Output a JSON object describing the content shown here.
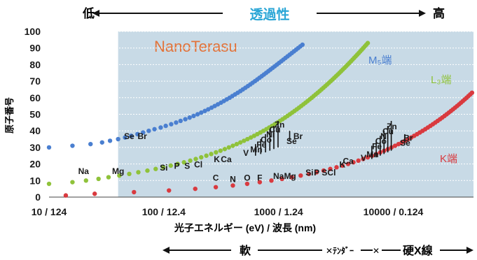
{
  "header": {
    "low": "低",
    "center": "透過性",
    "high": "高"
  },
  "brand": "NanoTerasu",
  "edge_labels": {
    "M5": "M₅端",
    "L3": "L₃端",
    "K": "K端"
  },
  "xlabel": "光子エネルギー (eV) / 波長 (nm)",
  "ylabel": "原子番号",
  "bottom_bands": {
    "soft": "軟",
    "tender": "ﾃﾝﾀﾞｰ",
    "hard": "硬X線"
  },
  "colors": {
    "M5": "#4a7fd0",
    "L3": "#8fc23a",
    "K": "#d93a3f",
    "band": "#c8dae6",
    "header": "#2aa6d6",
    "brand": "#e2733a",
    "text": "#1a1a1a"
  },
  "chart_data": {
    "type": "scatter",
    "xscale": "log",
    "xlim": [
      10,
      50000
    ],
    "ylim": [
      0,
      100
    ],
    "yticks": [
      0,
      10,
      20,
      30,
      40,
      50,
      60,
      70,
      80,
      90,
      100
    ],
    "xticks": [
      {
        "x": 10,
        "label": "10 / 124"
      },
      {
        "x": 100,
        "label": "100 / 12.4"
      },
      {
        "x": 1000,
        "label": "1000 / 1.24"
      },
      {
        "x": 10000,
        "label": "10000 / 0.124"
      }
    ],
    "shaded_region_x_start": 40,
    "series": [
      {
        "name": "M₅端",
        "points": [
          [
            10,
            30
          ],
          [
            16,
            31
          ],
          [
            23,
            32
          ],
          [
            29,
            33
          ],
          [
            34,
            34
          ],
          [
            40,
            35
          ],
          [
            46,
            36
          ],
          [
            52,
            37
          ],
          [
            59,
            38
          ],
          [
            66,
            39
          ],
          [
            74,
            40
          ],
          [
            83,
            41
          ],
          [
            94,
            42
          ],
          [
            104,
            43
          ],
          [
            116,
            44
          ],
          [
            128,
            45
          ],
          [
            140,
            46
          ],
          [
            154,
            47
          ],
          [
            168,
            48
          ],
          [
            182,
            49
          ],
          [
            197,
            50
          ],
          [
            212,
            51
          ],
          [
            228,
            52
          ],
          [
            244,
            53
          ],
          [
            261,
            54
          ],
          [
            278,
            55
          ],
          [
            296,
            56
          ],
          [
            315,
            57
          ],
          [
            334,
            58
          ],
          [
            354,
            59
          ],
          [
            375,
            60
          ],
          [
            396,
            61
          ],
          [
            418,
            62
          ],
          [
            441,
            63
          ],
          [
            465,
            64
          ],
          [
            489,
            65
          ],
          [
            514,
            66
          ],
          [
            540,
            67
          ],
          [
            567,
            68
          ],
          [
            594,
            69
          ],
          [
            623,
            70
          ],
          [
            652,
            71
          ],
          [
            682,
            72
          ],
          [
            714,
            73
          ],
          [
            746,
            74
          ],
          [
            780,
            75
          ],
          [
            815,
            76
          ],
          [
            851,
            77
          ],
          [
            889,
            78
          ],
          [
            928,
            79
          ],
          [
            969,
            80
          ],
          [
            1011,
            81
          ],
          [
            1056,
            82
          ],
          [
            1102,
            83
          ],
          [
            1150,
            84
          ],
          [
            1200,
            85
          ],
          [
            1253,
            86
          ],
          [
            1307,
            87
          ],
          [
            1364,
            88
          ],
          [
            1423,
            89
          ],
          [
            1485,
            90
          ],
          [
            1549,
            91
          ],
          [
            1616,
            92
          ]
        ]
      },
      {
        "name": "L₃端",
        "points": [
          [
            10,
            8
          ],
          [
            16,
            9
          ],
          [
            21,
            10
          ],
          [
            27,
            11
          ],
          [
            33,
            12
          ],
          [
            41,
            13
          ],
          [
            50,
            14
          ],
          [
            60,
            15
          ],
          [
            72,
            16
          ],
          [
            85,
            17
          ],
          [
            99,
            18
          ],
          [
            115,
            19
          ],
          [
            132,
            20
          ],
          [
            150,
            21
          ],
          [
            170,
            22
          ],
          [
            190,
            23
          ],
          [
            212,
            24
          ],
          [
            235,
            25
          ],
          [
            259,
            26
          ],
          [
            285,
            27
          ],
          [
            312,
            28
          ],
          [
            340,
            29
          ],
          [
            369,
            30
          ],
          [
            400,
            31
          ],
          [
            432,
            32
          ],
          [
            465,
            33
          ],
          [
            500,
            34
          ],
          [
            536,
            35
          ],
          [
            574,
            36
          ],
          [
            613,
            37
          ],
          [
            653,
            38
          ],
          [
            695,
            39
          ],
          [
            738,
            40
          ],
          [
            783,
            41
          ],
          [
            829,
            42
          ],
          [
            877,
            43
          ],
          [
            926,
            44
          ],
          [
            977,
            45
          ],
          [
            1029,
            46
          ],
          [
            1083,
            47
          ],
          [
            1139,
            48
          ],
          [
            1196,
            49
          ],
          [
            1255,
            50
          ],
          [
            1316,
            51
          ],
          [
            1378,
            52
          ],
          [
            1443,
            53
          ],
          [
            1509,
            54
          ],
          [
            1577,
            55
          ],
          [
            1647,
            56
          ],
          [
            1719,
            57
          ],
          [
            1793,
            58
          ],
          [
            1869,
            59
          ],
          [
            1947,
            60
          ],
          [
            2027,
            61
          ],
          [
            2110,
            62
          ],
          [
            2194,
            63
          ],
          [
            2281,
            64
          ],
          [
            2370,
            65
          ],
          [
            2461,
            66
          ],
          [
            2555,
            67
          ],
          [
            2651,
            68
          ],
          [
            2750,
            69
          ],
          [
            2851,
            70
          ],
          [
            2955,
            71
          ],
          [
            3061,
            72
          ],
          [
            3170,
            73
          ],
          [
            3282,
            74
          ],
          [
            3397,
            75
          ],
          [
            3514,
            76
          ],
          [
            3634,
            77
          ],
          [
            3757,
            78
          ],
          [
            3883,
            79
          ],
          [
            4012,
            80
          ],
          [
            4144,
            81
          ],
          [
            4279,
            82
          ],
          [
            4417,
            83
          ],
          [
            4559,
            84
          ],
          [
            4704,
            85
          ],
          [
            4852,
            86
          ],
          [
            5004,
            87
          ],
          [
            5159,
            88
          ],
          [
            5318,
            89
          ],
          [
            5481,
            90
          ],
          [
            5647,
            91
          ],
          [
            5817,
            92
          ],
          [
            5992,
            93
          ]
        ]
      },
      {
        "name": "K端",
        "points": [
          [
            14,
            1
          ],
          [
            25,
            2
          ],
          [
            55,
            3
          ],
          [
            111,
            4
          ],
          [
            188,
            5
          ],
          [
            284,
            6
          ],
          [
            400,
            7
          ],
          [
            533,
            8
          ],
          [
            686,
            9
          ],
          [
            867,
            10
          ],
          [
            1072,
            11
          ],
          [
            1305,
            12
          ],
          [
            1560,
            13
          ],
          [
            1839,
            14
          ],
          [
            2146,
            15
          ],
          [
            2472,
            16
          ],
          [
            2822,
            17
          ],
          [
            3203,
            18
          ],
          [
            3608,
            19
          ],
          [
            4038,
            20
          ],
          [
            4493,
            21
          ],
          [
            4965,
            22
          ],
          [
            5465,
            23
          ],
          [
            5989,
            24
          ],
          [
            6539,
            25
          ],
          [
            7112,
            26
          ],
          [
            7709,
            27
          ],
          [
            8333,
            28
          ],
          [
            8979,
            29
          ],
          [
            9659,
            30
          ],
          [
            10367,
            31
          ],
          [
            11103,
            32
          ],
          [
            11867,
            33
          ],
          [
            12658,
            34
          ],
          [
            13474,
            35
          ],
          [
            14326,
            36
          ],
          [
            15200,
            37
          ],
          [
            16105,
            38
          ],
          [
            17038,
            39
          ],
          [
            17998,
            40
          ],
          [
            18986,
            41
          ],
          [
            20000,
            42
          ],
          [
            21044,
            43
          ],
          [
            22117,
            44
          ],
          [
            23220,
            45
          ],
          [
            24350,
            46
          ],
          [
            25514,
            47
          ],
          [
            26711,
            48
          ],
          [
            27940,
            49
          ],
          [
            29200,
            50
          ],
          [
            30491,
            51
          ],
          [
            31814,
            52
          ],
          [
            33169,
            53
          ],
          [
            34561,
            54
          ],
          [
            35985,
            55
          ],
          [
            37441,
            56
          ],
          [
            38925,
            57
          ],
          [
            40443,
            58
          ],
          [
            41991,
            59
          ],
          [
            43569,
            60
          ],
          [
            45184,
            61
          ],
          [
            46834,
            62
          ],
          [
            48519,
            63
          ],
          [
            50239,
            64
          ]
        ]
      }
    ],
    "element_labels": [
      {
        "text": "Na",
        "x": 20,
        "y": 14
      },
      {
        "text": "Mg",
        "x": 40,
        "y": 14
      },
      {
        "text": "Si",
        "x": 100,
        "y": 16
      },
      {
        "text": "P",
        "x": 130,
        "y": 17
      },
      {
        "text": "S",
        "x": 160,
        "y": 17
      },
      {
        "text": "Cl",
        "x": 200,
        "y": 18
      },
      {
        "text": "K",
        "x": 290,
        "y": 21
      },
      {
        "text": "Ca",
        "x": 350,
        "y": 21
      },
      {
        "text": "V",
        "x": 520,
        "y": 25
      },
      {
        "text": "Mn",
        "x": 640,
        "y": 27
      },
      {
        "text": "Fe",
        "x": 710,
        "y": 30
      },
      {
        "text": "Co",
        "x": 780,
        "y": 33
      },
      {
        "text": "Ni",
        "x": 850,
        "y": 36
      },
      {
        "text": "Cu",
        "x": 930,
        "y": 39
      },
      {
        "text": "Zn",
        "x": 1020,
        "y": 42
      },
      {
        "text": "Se",
        "x": 1300,
        "y": 32
      },
      {
        "text": "Br",
        "x": 1480,
        "y": 35
      },
      {
        "text": "Se",
        "x": 50,
        "y": 35
      },
      {
        "text": "Br",
        "x": 65,
        "y": 35
      },
      {
        "text": "C",
        "x": 284,
        "y": 10
      },
      {
        "text": "N",
        "x": 400,
        "y": 9
      },
      {
        "text": "O",
        "x": 533,
        "y": 10
      },
      {
        "text": "F",
        "x": 686,
        "y": 10
      },
      {
        "text": "Na",
        "x": 1000,
        "y": 11
      },
      {
        "text": "Mg",
        "x": 1260,
        "y": 11
      },
      {
        "text": "Si",
        "x": 1860,
        "y": 13
      },
      {
        "text": "P",
        "x": 2150,
        "y": 13
      },
      {
        "text": "S",
        "x": 2520,
        "y": 13
      },
      {
        "text": "Cl",
        "x": 2900,
        "y": 13
      },
      {
        "text": "K",
        "x": 3600,
        "y": 18
      },
      {
        "text": "Ca",
        "x": 4050,
        "y": 20
      },
      {
        "text": "V",
        "x": 5500,
        "y": 22
      },
      {
        "text": "Mn",
        "x": 6600,
        "y": 24
      },
      {
        "text": "Fe",
        "x": 7200,
        "y": 29
      },
      {
        "text": "Co",
        "x": 7800,
        "y": 32
      },
      {
        "text": "Ni",
        "x": 8400,
        "y": 35
      },
      {
        "text": "Cu",
        "x": 9000,
        "y": 38
      },
      {
        "text": "Zn",
        "x": 9700,
        "y": 41
      },
      {
        "text": "Se",
        "x": 12700,
        "y": 31
      },
      {
        "text": "Br",
        "x": 13500,
        "y": 34
      }
    ],
    "element_ticks": [
      {
        "x": 630,
        "y0": 25,
        "y1": 32
      },
      {
        "x": 700,
        "y0": 26,
        "y1": 35
      },
      {
        "x": 770,
        "y0": 27,
        "y1": 38
      },
      {
        "x": 840,
        "y0": 28,
        "y1": 41
      },
      {
        "x": 910,
        "y0": 29,
        "y1": 43
      },
      {
        "x": 990,
        "y0": 30,
        "y1": 46
      },
      {
        "x": 1250,
        "y0": 34,
        "y1": 40
      },
      {
        "x": 6500,
        "y0": 23,
        "y1": 31
      },
      {
        "x": 7100,
        "y0": 24,
        "y1": 34
      },
      {
        "x": 7700,
        "y0": 25,
        "y1": 37
      },
      {
        "x": 8300,
        "y0": 26,
        "y1": 40
      },
      {
        "x": 8950,
        "y0": 27,
        "y1": 43
      },
      {
        "x": 9600,
        "y0": 28,
        "y1": 46
      },
      {
        "x": 12600,
        "y0": 33,
        "y1": 38
      }
    ]
  }
}
